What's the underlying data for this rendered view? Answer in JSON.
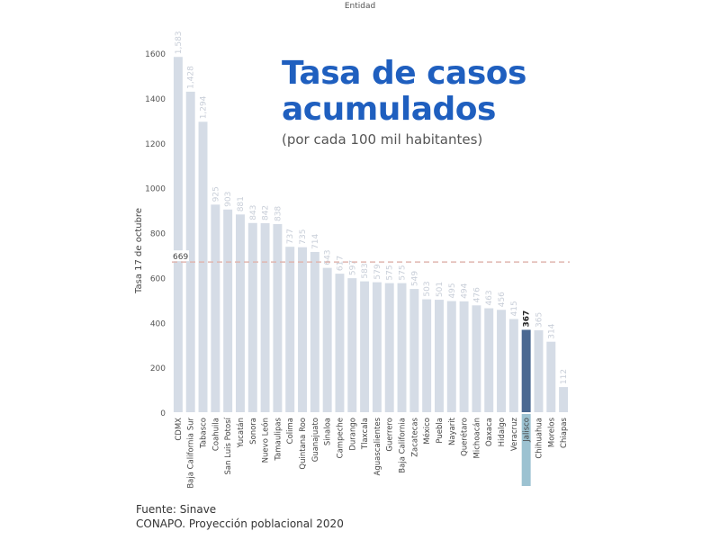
{
  "header_label": "Entidad",
  "title_line1": "Tasa de casos",
  "title_line2": "acumulados",
  "subtitle": "(por cada 100 mil habitantes)",
  "source_line1": "Fuente: Sinave",
  "source_line2": "CONAPO. Proyección poblacional 2020",
  "colors": {
    "bar": "#d5dce6",
    "highlight": "#4a6891",
    "highlight_base": "#9cc2d1",
    "average_line": "#e0b6b0",
    "title": "#1f5fbf"
  },
  "chart_data": {
    "type": "bar",
    "categories": [
      "CDMX",
      "Baja California Sur",
      "Tabasco",
      "Coahuila",
      "San Luis Potosí",
      "Yucatán",
      "Sonora",
      "Nuevo León",
      "Tamaulipas",
      "Colima",
      "Quintana Roo",
      "Guanajuato",
      "Sinaloa",
      "Campeche",
      "Durango",
      "Tlaxcala",
      "Aguascalientes",
      "Guerrero",
      "Baja California",
      "Zacatecas",
      "México",
      "Puebla",
      "Nayarit",
      "Querétaro",
      "Michoacán",
      "Oaxaca",
      "Hidalgo",
      "Veracruz",
      "Jalisco",
      "Chihuahua",
      "Morelos",
      "Chiapas"
    ],
    "values": [
      1583,
      1428,
      1294,
      925,
      903,
      881,
      843,
      842,
      838,
      737,
      735,
      714,
      643,
      617,
      597,
      583,
      579,
      575,
      575,
      549,
      503,
      501,
      495,
      494,
      476,
      463,
      456,
      415,
      367,
      365,
      314,
      112
    ],
    "value_labels": [
      "1,583",
      "1,428",
      "1,294",
      "925",
      "903",
      "881",
      "843",
      "842",
      "838",
      "737",
      "735",
      "714",
      "643",
      "617",
      "597",
      "583",
      "579",
      "575",
      "575",
      "549",
      "503",
      "501",
      "495",
      "494",
      "476",
      "463",
      "456",
      "415",
      "367",
      "365",
      "314",
      "112"
    ],
    "highlight": "Jalisco",
    "average": 669,
    "average_label": "669",
    "ylabel": "Tasa 17 de octubre",
    "xlabel": "Entidad",
    "ylim": [
      0,
      1600
    ],
    "yticks": [
      0,
      200,
      400,
      600,
      800,
      1000,
      1200,
      1400,
      1600
    ],
    "grid": false
  }
}
